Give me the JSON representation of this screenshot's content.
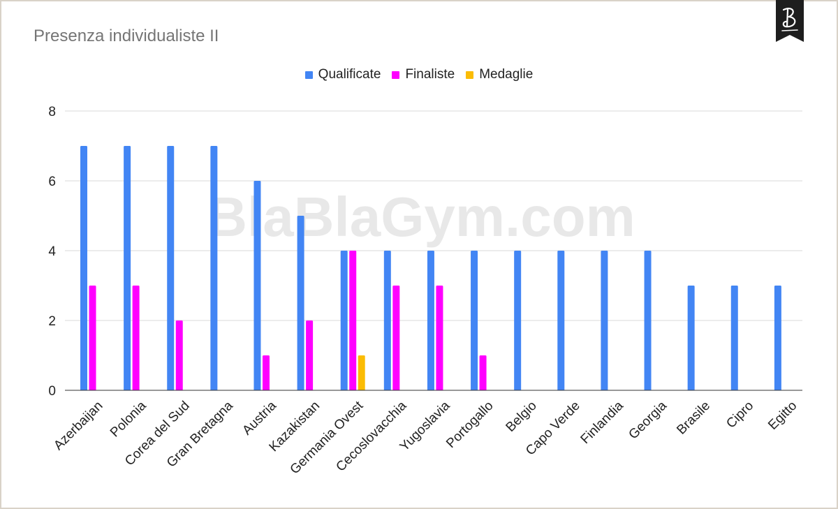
{
  "chart_data": {
    "type": "bar",
    "title": "Presenza individualiste II",
    "xlabel": "",
    "ylabel": "",
    "ylim": [
      0,
      8
    ],
    "yticks": [
      "0",
      "2",
      "4",
      "6",
      "8"
    ],
    "grid": true,
    "legend_position": "top",
    "watermark": "BlaBlaGym.com",
    "categories": [
      "Azerbaijan",
      "Polonia",
      "Corea del Sud",
      "Gran Bretagna",
      "Austria",
      "Kazakistan",
      "Germania Ovest",
      "Cecoslovacchia",
      "Yugoslavia",
      "Portogallo",
      "Belgio",
      "Capo Verde",
      "Finlandia",
      "Georgia",
      "Brasile",
      "Cipro",
      "Egitto"
    ],
    "series": [
      {
        "name": "Qualificate",
        "color": "#4285f4",
        "values": [
          7,
          7,
          7,
          7,
          6,
          5,
          4,
          4,
          4,
          4,
          4,
          4,
          4,
          4,
          3,
          3,
          3
        ]
      },
      {
        "name": "Finaliste",
        "color": "#ff00ff",
        "values": [
          3,
          3,
          2,
          0,
          1,
          2,
          4,
          3,
          3,
          1,
          0,
          0,
          0,
          0,
          0,
          0,
          0
        ]
      },
      {
        "name": "Medaglie",
        "color": "#fbbc04",
        "values": [
          0,
          0,
          0,
          0,
          0,
          0,
          1,
          0,
          0,
          0,
          0,
          0,
          0,
          0,
          0,
          0,
          0
        ]
      }
    ]
  },
  "logo_icon": "blablagym-b-logo-icon"
}
